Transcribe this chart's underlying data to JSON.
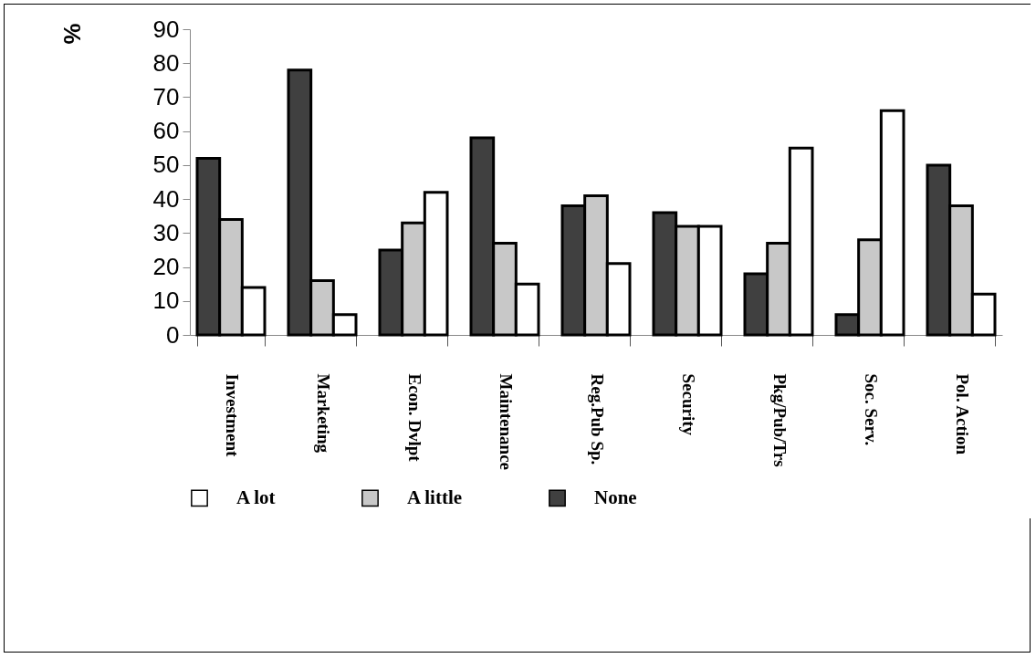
{
  "chart_data": {
    "type": "bar",
    "ylabel": "%",
    "categories": [
      "Investment",
      "Marketing",
      "Econ. Dvlpt",
      "Maintenance",
      "Reg.Pub Sp.",
      "Security",
      "Pkg/Pub/Trs",
      "Soc. Serv.",
      "Pol. Action"
    ],
    "series": [
      {
        "name": "None",
        "color": "#404040",
        "values": [
          52,
          78,
          25,
          58,
          38,
          36,
          18,
          6,
          50
        ]
      },
      {
        "name": "A little",
        "color": "#c8c8c8",
        "values": [
          34,
          16,
          33,
          27,
          41,
          32,
          27,
          28,
          38
        ]
      },
      {
        "name": "A lot",
        "color": "#ffffff",
        "values": [
          14,
          6,
          42,
          15,
          21,
          32,
          55,
          66,
          12
        ]
      }
    ],
    "ylim": [
      0,
      90
    ],
    "yticks": [
      0,
      10,
      20,
      30,
      40,
      50,
      60,
      70,
      80,
      90
    ],
    "grid": false,
    "legend": "bottom"
  }
}
